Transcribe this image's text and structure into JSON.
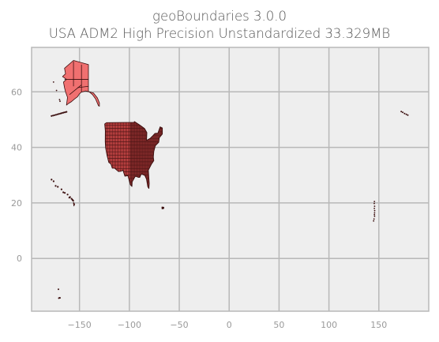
{
  "chart_data": {
    "type": "map",
    "title": "geoBoundaries 3.0.0",
    "subtitle": "USA ADM2 High Precision Unstandardized 33.329MB",
    "xlabel": "",
    "ylabel": "",
    "xlim": [
      -198,
      200
    ],
    "ylim": [
      -19,
      76
    ],
    "x_ticks": [
      -150,
      -100,
      -50,
      0,
      50,
      100,
      150
    ],
    "x_tick_labels": [
      "−150",
      "−100",
      "−50",
      "0",
      "50",
      "100",
      "150"
    ],
    "y_ticks": [
      0,
      20,
      40,
      60
    ],
    "y_tick_labels": [
      "0",
      "20",
      "40",
      "60"
    ],
    "grid": true,
    "colors": {
      "background": "#eeeeee",
      "grid": "#b8b8b8",
      "land_fill": "#f07070",
      "county_borders": "#3a0e0e"
    },
    "regions": [
      {
        "name": "Alaska",
        "lon": -152,
        "lat": 63
      },
      {
        "name": "Contiguous United States",
        "lon": -98,
        "lat": 39
      },
      {
        "name": "Hawaii",
        "lon": -157,
        "lat": 20.5
      },
      {
        "name": "Puerto Rico",
        "lon": -66.5,
        "lat": 18.2
      },
      {
        "name": "Guam and Northern Mariana Islands",
        "lon": 145,
        "lat": 17
      },
      {
        "name": "Aleutian Islands (east of 180)",
        "lon": 175,
        "lat": 52
      },
      {
        "name": "American Samoa",
        "lon": -170,
        "lat": -14.2
      }
    ]
  }
}
